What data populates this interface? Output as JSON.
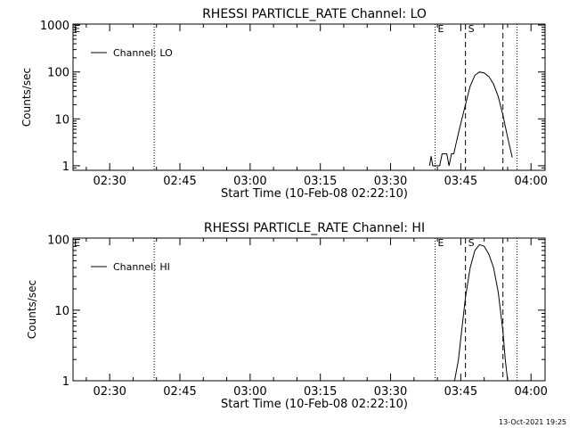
{
  "footer": {
    "timestamp": "13-Oct-2021 19:25"
  },
  "chart_data": [
    {
      "type": "line",
      "title": "RHESSI PARTICLE_RATE Channel: LO",
      "xlabel": "Start Time (10-Feb-08 02:22:10)",
      "ylabel": "Counts/sec",
      "yscale": "log",
      "xlim": [
        "02:22:10",
        "04:03:00"
      ],
      "ylim": [
        0.8,
        1050
      ],
      "x_ticks": [
        "02:30",
        "02:45",
        "03:00",
        "03:15",
        "03:30",
        "03:45",
        "04:00"
      ],
      "y_ticks": [
        "1",
        "10",
        "100",
        "1000"
      ],
      "legend": {
        "label": "Channel: LO",
        "position": "top-left"
      },
      "vlines": [
        {
          "x": "02:39:30",
          "style": "dotted",
          "label": ""
        },
        {
          "x": "03:39:30",
          "style": "dotted",
          "label": "E"
        },
        {
          "x": "03:46:00",
          "style": "dashed",
          "label": "S"
        },
        {
          "x": "03:54:00",
          "style": "dashed",
          "label": ""
        },
        {
          "x": "03:57:00",
          "style": "dotted",
          "label": ""
        }
      ],
      "series": [
        {
          "name": "Channel: LO",
          "x": [
            "03:38:20",
            "03:38:40",
            "03:39:00",
            "03:40:30",
            "03:41:00",
            "03:42:00",
            "03:42:30",
            "03:43:00",
            "03:43:30",
            "03:44:00",
            "03:44:30",
            "03:45:00",
            "03:46:00",
            "03:47:00",
            "03:48:00",
            "03:49:00",
            "03:50:00",
            "03:51:00",
            "03:52:00",
            "03:53:00",
            "03:54:00",
            "03:55:00",
            "03:56:00"
          ],
          "y": [
            1,
            1.6,
            1,
            1,
            1.8,
            1.8,
            1,
            1.8,
            1.8,
            3,
            5,
            8,
            20,
            50,
            85,
            100,
            95,
            80,
            55,
            30,
            12,
            4,
            1.5
          ]
        }
      ]
    },
    {
      "type": "line",
      "title": "RHESSI PARTICLE_RATE Channel: HI",
      "xlabel": "Start Time (10-Feb-08 02:22:10)",
      "ylabel": "Counts/sec",
      "yscale": "log",
      "xlim": [
        "02:22:10",
        "04:03:00"
      ],
      "ylim": [
        1,
        105
      ],
      "x_ticks": [
        "02:30",
        "02:45",
        "03:00",
        "03:15",
        "03:30",
        "03:45",
        "04:00"
      ],
      "y_ticks": [
        "1",
        "10",
        "100"
      ],
      "legend": {
        "label": "Channel: HI",
        "position": "top-left"
      },
      "vlines": [
        {
          "x": "02:39:30",
          "style": "dotted",
          "label": ""
        },
        {
          "x": "03:39:30",
          "style": "dotted",
          "label": "E"
        },
        {
          "x": "03:46:00",
          "style": "dashed",
          "label": "S"
        },
        {
          "x": "03:54:00",
          "style": "dashed",
          "label": ""
        },
        {
          "x": "03:57:00",
          "style": "dotted",
          "label": ""
        }
      ],
      "series": [
        {
          "name": "Channel: HI",
          "x": [
            "03:43:40",
            "03:44:30",
            "03:45:00",
            "03:46:00",
            "03:47:00",
            "03:48:00",
            "03:49:00",
            "03:50:00",
            "03:51:00",
            "03:52:00",
            "03:53:00",
            "03:54:00",
            "03:54:30",
            "03:55:00"
          ],
          "y": [
            1,
            2,
            4,
            15,
            40,
            70,
            85,
            80,
            62,
            40,
            18,
            5,
            2,
            1
          ]
        }
      ]
    }
  ]
}
